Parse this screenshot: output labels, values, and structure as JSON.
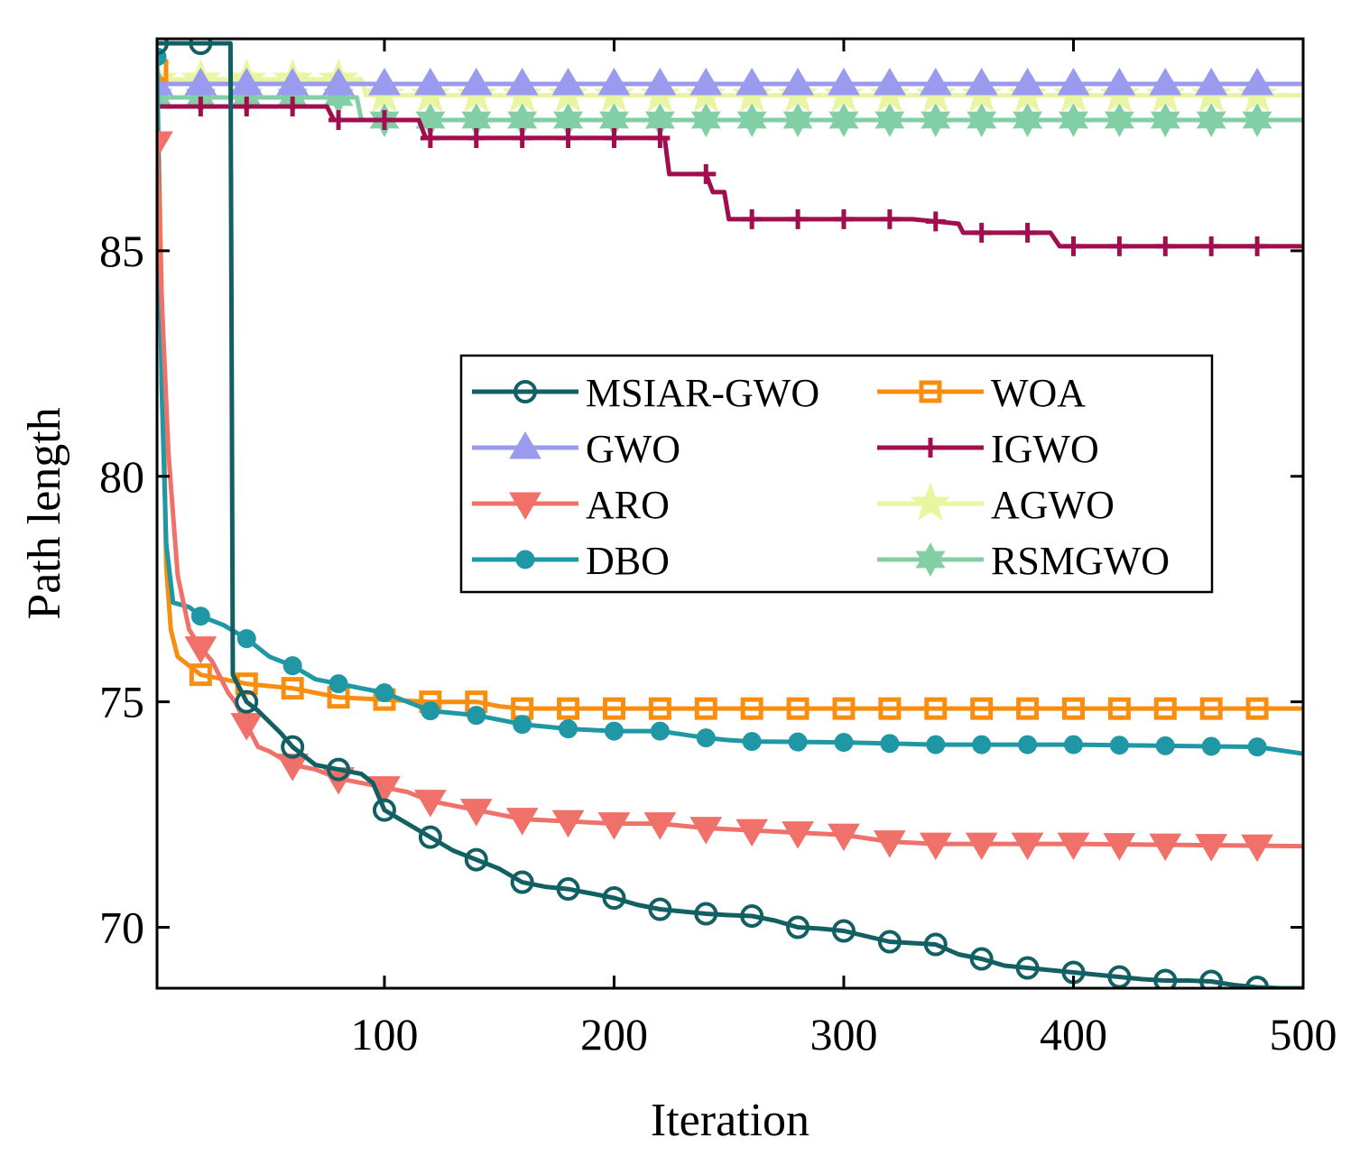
{
  "chart_data": {
    "type": "line",
    "title": "",
    "xlabel": "Iteration",
    "ylabel": "Path length",
    "xlim": [
      1,
      500
    ],
    "ylim": [
      68.65,
      89.7
    ],
    "xticks": [
      100,
      200,
      300,
      400,
      500
    ],
    "xtick_labels": [
      "100",
      "200",
      "300",
      "400",
      "500"
    ],
    "yticks": [
      70,
      75,
      80,
      85
    ],
    "ytick_labels": [
      "70",
      "75",
      "80",
      "85"
    ],
    "grid": false,
    "legend_position": "center-right",
    "series": [
      {
        "name": "MSIAR-GWO",
        "color": "#126063",
        "marker": "circle-open",
        "points": [
          [
            1,
            89.6
          ],
          [
            20,
            89.6
          ],
          [
            33,
            89.6
          ],
          [
            34,
            75.6
          ],
          [
            40,
            75.0
          ],
          [
            45,
            74.8
          ],
          [
            55,
            74.3
          ],
          [
            60,
            74.0
          ],
          [
            70,
            73.6
          ],
          [
            80,
            73.5
          ],
          [
            90,
            73.4
          ],
          [
            95,
            73.2
          ],
          [
            100,
            72.6
          ],
          [
            110,
            72.3
          ],
          [
            120,
            72.0
          ],
          [
            130,
            71.7
          ],
          [
            140,
            71.5
          ],
          [
            150,
            71.3
          ],
          [
            160,
            71.0
          ],
          [
            170,
            70.9
          ],
          [
            180,
            70.85
          ],
          [
            190,
            70.75
          ],
          [
            200,
            70.65
          ],
          [
            210,
            70.5
          ],
          [
            220,
            70.4
          ],
          [
            230,
            70.35
          ],
          [
            240,
            70.3
          ],
          [
            250,
            70.27
          ],
          [
            260,
            70.25
          ],
          [
            270,
            70.15
          ],
          [
            280,
            70.0
          ],
          [
            290,
            69.97
          ],
          [
            300,
            69.92
          ],
          [
            310,
            69.8
          ],
          [
            320,
            69.68
          ],
          [
            330,
            69.65
          ],
          [
            340,
            69.62
          ],
          [
            350,
            69.4
          ],
          [
            360,
            69.3
          ],
          [
            370,
            69.15
          ],
          [
            380,
            69.1
          ],
          [
            390,
            69.05
          ],
          [
            400,
            69.0
          ],
          [
            410,
            68.95
          ],
          [
            420,
            68.9
          ],
          [
            430,
            68.85
          ],
          [
            440,
            68.82
          ],
          [
            450,
            68.82
          ],
          [
            460,
            68.8
          ],
          [
            470,
            68.72
          ],
          [
            480,
            68.67
          ],
          [
            490,
            68.65
          ],
          [
            500,
            68.65
          ]
        ]
      },
      {
        "name": "GWO",
        "color": "#9a9aef",
        "marker": "triangle-up",
        "points": [
          [
            1,
            88.7
          ],
          [
            500,
            88.7
          ]
        ]
      },
      {
        "name": "ARO",
        "color": "#f07169",
        "marker": "triangle-down",
        "points": [
          [
            1,
            87.4
          ],
          [
            3,
            84.0
          ],
          [
            6,
            80.5
          ],
          [
            10,
            77.8
          ],
          [
            15,
            76.6
          ],
          [
            20,
            76.2
          ],
          [
            25,
            75.9
          ],
          [
            28,
            75.6
          ],
          [
            32,
            75.2
          ],
          [
            35,
            75.0
          ],
          [
            40,
            74.5
          ],
          [
            45,
            74.0
          ],
          [
            50,
            73.9
          ],
          [
            60,
            73.6
          ],
          [
            70,
            73.5
          ],
          [
            80,
            73.3
          ],
          [
            100,
            73.1
          ],
          [
            110,
            73.0
          ],
          [
            120,
            72.8
          ],
          [
            130,
            72.7
          ],
          [
            140,
            72.6
          ],
          [
            150,
            72.5
          ],
          [
            160,
            72.4
          ],
          [
            180,
            72.35
          ],
          [
            200,
            72.3
          ],
          [
            220,
            72.3
          ],
          [
            240,
            72.2
          ],
          [
            260,
            72.15
          ],
          [
            280,
            72.1
          ],
          [
            300,
            72.05
          ],
          [
            320,
            71.9
          ],
          [
            340,
            71.85
          ],
          [
            400,
            71.85
          ],
          [
            500,
            71.8
          ]
        ]
      },
      {
        "name": "DBO",
        "color": "#1f97a5",
        "marker": "circle-filled",
        "points": [
          [
            1,
            89.3
          ],
          [
            3,
            82.0
          ],
          [
            5,
            78.5
          ],
          [
            8,
            77.2
          ],
          [
            15,
            77.1
          ],
          [
            20,
            76.9
          ],
          [
            30,
            76.7
          ],
          [
            40,
            76.4
          ],
          [
            50,
            76.0
          ],
          [
            60,
            75.8
          ],
          [
            70,
            75.5
          ],
          [
            80,
            75.4
          ],
          [
            100,
            75.2
          ],
          [
            110,
            75.0
          ],
          [
            120,
            74.8
          ],
          [
            130,
            74.75
          ],
          [
            140,
            74.7
          ],
          [
            150,
            74.6
          ],
          [
            160,
            74.5
          ],
          [
            180,
            74.4
          ],
          [
            200,
            74.35
          ],
          [
            220,
            74.35
          ],
          [
            240,
            74.2
          ],
          [
            250,
            74.15
          ],
          [
            260,
            74.12
          ],
          [
            300,
            74.1
          ],
          [
            340,
            74.05
          ],
          [
            400,
            74.05
          ],
          [
            480,
            74.0
          ],
          [
            500,
            73.85
          ]
        ]
      },
      {
        "name": "WOA",
        "color": "#f78e0f",
        "marker": "square",
        "points": [
          [
            1,
            89.0
          ],
          [
            3,
            84.0
          ],
          [
            5,
            78.0
          ],
          [
            7,
            76.6
          ],
          [
            10,
            76.0
          ],
          [
            15,
            75.8
          ],
          [
            20,
            75.6
          ],
          [
            30,
            75.5
          ],
          [
            35,
            75.45
          ],
          [
            40,
            75.4
          ],
          [
            60,
            75.3
          ],
          [
            70,
            75.2
          ],
          [
            80,
            75.1
          ],
          [
            100,
            75.05
          ],
          [
            120,
            75.0
          ],
          [
            140,
            75.0
          ],
          [
            150,
            74.9
          ],
          [
            160,
            74.85
          ],
          [
            500,
            74.85
          ]
        ]
      },
      {
        "name": "IGWO",
        "color": "#a10e4f",
        "marker": "plus",
        "points": [
          [
            1,
            88.2
          ],
          [
            40,
            88.2
          ],
          [
            75,
            88.2
          ],
          [
            78,
            87.9
          ],
          [
            90,
            87.9
          ],
          [
            100,
            87.9
          ],
          [
            115,
            87.9
          ],
          [
            118,
            87.5
          ],
          [
            150,
            87.5
          ],
          [
            200,
            87.5
          ],
          [
            222,
            87.5
          ],
          [
            224,
            86.7
          ],
          [
            240,
            86.7
          ],
          [
            243,
            86.3
          ],
          [
            248,
            86.3
          ],
          [
            250,
            85.7
          ],
          [
            300,
            85.7
          ],
          [
            330,
            85.7
          ],
          [
            340,
            85.65
          ],
          [
            350,
            85.6
          ],
          [
            352,
            85.4
          ],
          [
            390,
            85.4
          ],
          [
            394,
            85.1
          ],
          [
            500,
            85.1
          ]
        ]
      },
      {
        "name": "AGWO",
        "color": "#eaf5a2",
        "marker": "star",
        "points": [
          [
            1,
            88.8
          ],
          [
            80,
            88.8
          ],
          [
            90,
            88.8
          ],
          [
            92,
            88.45
          ],
          [
            500,
            88.45
          ]
        ]
      },
      {
        "name": "RSMGWO",
        "color": "#82cfa6",
        "marker": "hexagram",
        "points": [
          [
            1,
            88.4
          ],
          [
            80,
            88.4
          ],
          [
            88,
            88.4
          ],
          [
            90,
            87.9
          ],
          [
            500,
            87.9
          ]
        ]
      }
    ]
  }
}
